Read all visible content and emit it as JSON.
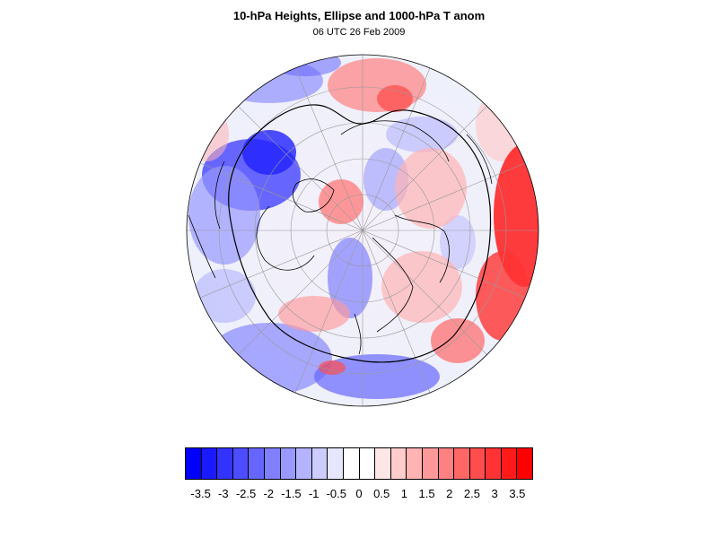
{
  "title": "10-hPa Heights, Ellipse and 1000-hPa T anom",
  "subtitle": "06 UTC 26 Feb 2009",
  "map": {
    "projection": "polar-stereographic-north",
    "field": "1000-hPa temperature anomaly",
    "contour": "10-hPa heights ellipse",
    "grid": true,
    "coastlines": true
  },
  "colorbar": {
    "labels": [
      "-3.5",
      "-3",
      "-2.5",
      "-2",
      "-1.5",
      "-1",
      "-0.5",
      "0",
      "0.5",
      "1",
      "1.5",
      "2",
      "2.5",
      "3",
      "3.5"
    ],
    "colors": [
      "#0000ff",
      "#1a1aff",
      "#3333ff",
      "#4d4dff",
      "#6666ff",
      "#8080ff",
      "#9999ff",
      "#b3b3ff",
      "#ccccff",
      "#e6e6ff",
      "#ffffff",
      "#ffffff",
      "#ffe6e6",
      "#ffcccc",
      "#ffb3b3",
      "#ff9999",
      "#ff8080",
      "#ff6666",
      "#ff4d4d",
      "#ff3333",
      "#ff1a1a",
      "#ff0000"
    ]
  }
}
